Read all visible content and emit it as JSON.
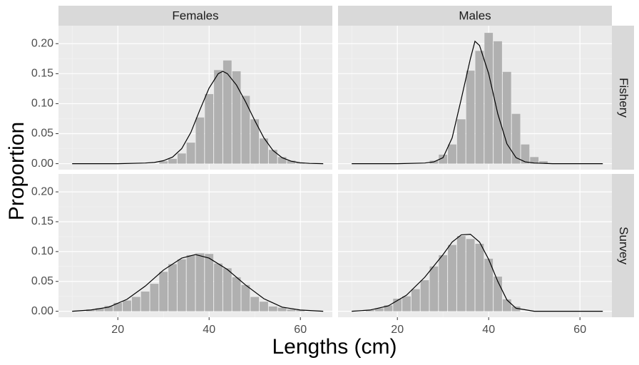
{
  "chart_data": {
    "type": "bar",
    "xlabel": "Lengths (cm)",
    "ylabel": "Proportion",
    "col_facets": [
      "Females",
      "Males"
    ],
    "row_facets": [
      "Fishery",
      "Survey"
    ],
    "xlim": [
      7,
      67
    ],
    "ylim": [
      -0.01,
      0.23
    ],
    "x_ticks": [
      20,
      40,
      60
    ],
    "y_ticks": [
      0.0,
      0.05,
      0.1,
      0.15,
      0.2
    ],
    "y_tick_labels": [
      "0.00",
      "0.05",
      "0.10",
      "0.15",
      "0.20"
    ],
    "colors": {
      "panel_bg": "#ebebeb",
      "strip_bg": "#d9d9d9",
      "grid_major": "#ffffff",
      "bar": "#b0b0b0",
      "line": "#000000",
      "text": "#4d4d4d",
      "strip_text": "#1a1a1a"
    },
    "panels": [
      {
        "col": "Females",
        "row": "Fishery",
        "bars": {
          "x": [
            30,
            32,
            34,
            36,
            38,
            40,
            42,
            44,
            46,
            48,
            50,
            52,
            54,
            56,
            58,
            60
          ],
          "values": [
            0.004,
            0.008,
            0.017,
            0.035,
            0.077,
            0.116,
            0.156,
            0.172,
            0.154,
            0.113,
            0.074,
            0.042,
            0.023,
            0.011,
            0.005,
            0.002
          ]
        },
        "line": {
          "x": [
            10,
            20,
            26,
            28,
            30,
            32,
            34,
            36,
            38,
            40,
            42,
            43,
            44,
            46,
            48,
            50,
            52,
            54,
            56,
            58,
            60,
            62,
            65
          ],
          "y": [
            0,
            0,
            0.001,
            0.002,
            0.005,
            0.011,
            0.025,
            0.052,
            0.09,
            0.126,
            0.15,
            0.154,
            0.15,
            0.131,
            0.103,
            0.072,
            0.043,
            0.022,
            0.01,
            0.004,
            0.0015,
            0.0005,
            0
          ]
        }
      },
      {
        "col": "Males",
        "row": "Fishery",
        "bars": {
          "x": [
            28,
            30,
            32,
            34,
            36,
            38,
            40,
            42,
            44,
            46,
            48,
            50,
            52
          ],
          "values": [
            0.005,
            0.015,
            0.032,
            0.074,
            0.155,
            0.188,
            0.218,
            0.204,
            0.153,
            0.083,
            0.032,
            0.011,
            0.004
          ]
        },
        "line": {
          "x": [
            10,
            20,
            26,
            28,
            30,
            32,
            34,
            36,
            37,
            38,
            40,
            42,
            44,
            46,
            48,
            50,
            54,
            65
          ],
          "y": [
            0,
            0,
            0.001,
            0.003,
            0.01,
            0.043,
            0.108,
            0.175,
            0.204,
            0.197,
            0.15,
            0.083,
            0.033,
            0.01,
            0.003,
            0.001,
            0,
            0
          ]
        }
      },
      {
        "col": "Females",
        "row": "Survey",
        "bars": {
          "x": [
            14,
            16,
            18,
            20,
            22,
            24,
            26,
            28,
            30,
            32,
            34,
            36,
            38,
            40,
            42,
            44,
            46,
            48,
            50,
            52,
            54,
            56,
            58,
            60
          ],
          "values": [
            0.003,
            0.005,
            0.009,
            0.014,
            0.018,
            0.024,
            0.033,
            0.046,
            0.066,
            0.079,
            0.087,
            0.094,
            0.097,
            0.096,
            0.08,
            0.072,
            0.057,
            0.044,
            0.024,
            0.016,
            0.008,
            0.006,
            0.003,
            0.002
          ]
        },
        "line": {
          "x": [
            10,
            14,
            18,
            22,
            26,
            30,
            34,
            37,
            40,
            44,
            48,
            52,
            56,
            60,
            65
          ],
          "y": [
            0,
            0.002,
            0.007,
            0.02,
            0.042,
            0.069,
            0.089,
            0.095,
            0.089,
            0.07,
            0.044,
            0.021,
            0.007,
            0.002,
            0
          ]
        }
      },
      {
        "col": "Males",
        "row": "Survey",
        "bars": {
          "x": [
            14,
            16,
            18,
            20,
            22,
            24,
            26,
            28,
            30,
            32,
            34,
            36,
            38,
            40,
            42,
            44,
            46
          ],
          "values": [
            0.002,
            0.005,
            0.01,
            0.021,
            0.025,
            0.037,
            0.052,
            0.075,
            0.094,
            0.111,
            0.126,
            0.121,
            0.113,
            0.088,
            0.058,
            0.02,
            0.008
          ]
        },
        "line": {
          "x": [
            10,
            14,
            18,
            22,
            26,
            30,
            32,
            34,
            36,
            38,
            40,
            42,
            44,
            46,
            50,
            65
          ],
          "y": [
            0,
            0.002,
            0.009,
            0.027,
            0.057,
            0.095,
            0.116,
            0.128,
            0.129,
            0.116,
            0.087,
            0.05,
            0.019,
            0.005,
            0,
            0
          ]
        }
      }
    ]
  }
}
